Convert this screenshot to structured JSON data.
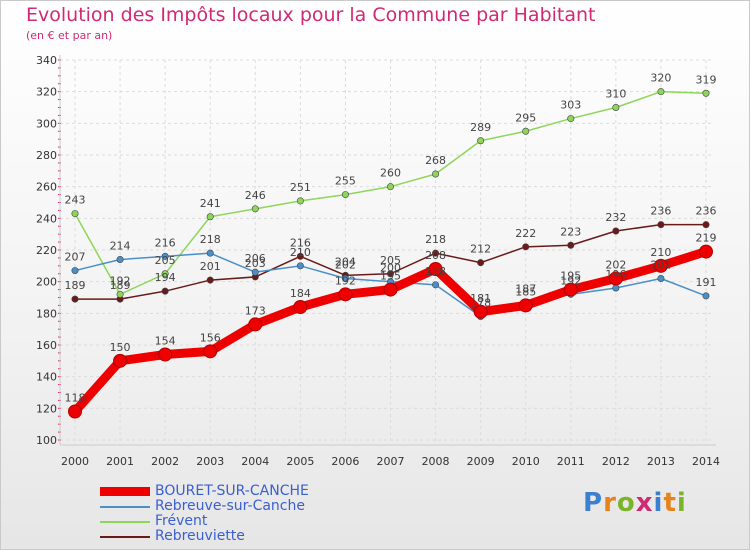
{
  "title": "Evolution des Impôts locaux pour la Commune par Habitant",
  "subtitle": "(en € et par an)",
  "logo": {
    "letters": [
      "P",
      "r",
      "o",
      "x",
      "i",
      "t",
      "i"
    ],
    "colors": [
      "#3a7fd0",
      "#e8831c",
      "#7bb42b",
      "#d02a74",
      "#3a7fd0",
      "#e8831c",
      "#7bb42b"
    ]
  },
  "chart_data": {
    "type": "line",
    "title": "Evolution des Impôts locaux pour la Commune par Habitant",
    "subtitle": "(en € et par an)",
    "xlabel": "",
    "ylabel": "",
    "x": [
      "2000",
      "2001",
      "2002",
      "2003",
      "2004",
      "2005",
      "2006",
      "2007",
      "2008",
      "2009",
      "2010",
      "2011",
      "2012",
      "2013",
      "2014"
    ],
    "ylim": [
      100,
      340
    ],
    "yticks": [
      100,
      120,
      140,
      160,
      180,
      200,
      220,
      240,
      260,
      280,
      300,
      320,
      340
    ],
    "grid": true,
    "legend_position": "bottom-left",
    "series": [
      {
        "name": "BOURET-SUR-CANCHE",
        "color": "#ee0000",
        "values": [
          118,
          150,
          154,
          156,
          173,
          184,
          192,
          195,
          208,
          181,
          185,
          195,
          202,
          210,
          219
        ]
      },
      {
        "name": "Rebreuve-sur-Canche",
        "color": "#4a90c8",
        "values": [
          207,
          214,
          216,
          218,
          206,
          210,
          202,
          200,
          198,
          178,
          187,
          192,
          196,
          202,
          191
        ]
      },
      {
        "name": "Frévent",
        "color": "#8dd65a",
        "values": [
          243,
          192,
          205,
          241,
          246,
          251,
          255,
          260,
          268,
          289,
          295,
          303,
          310,
          320,
          319
        ]
      },
      {
        "name": "Rebreuviette",
        "color": "#6b1a1a",
        "values": [
          189,
          189,
          194,
          201,
          203,
          216,
          204,
          205,
          218,
          212,
          222,
          223,
          232,
          236,
          236
        ]
      }
    ],
    "point_labels": [
      [
        118,
        150,
        154,
        156,
        173,
        184,
        192,
        195,
        208,
        181,
        185,
        195,
        202,
        210,
        219
      ],
      [
        207,
        214,
        216,
        218,
        206,
        210,
        202,
        200,
        198,
        178,
        187,
        192,
        196,
        202,
        191
      ],
      [
        243,
        192,
        205,
        241,
        246,
        251,
        255,
        260,
        268,
        289,
        295,
        303,
        310,
        320,
        319
      ],
      [
        189,
        189,
        194,
        201,
        203,
        216,
        204,
        205,
        218,
        212,
        222,
        223,
        232,
        236,
        236
      ]
    ]
  }
}
